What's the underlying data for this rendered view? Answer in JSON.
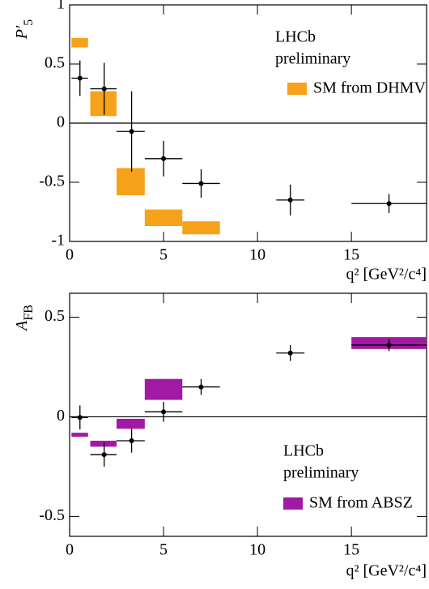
{
  "chart_data": [
    {
      "type": "errorbar",
      "y_label": [
        "P′",
        "5"
      ],
      "x_label": "q² [GeV²/c⁴]",
      "annotations": [
        "LHCb",
        "preliminary"
      ],
      "xlim": [
        0,
        19
      ],
      "xticks": [
        0,
        5,
        10,
        15
      ],
      "ylim": [
        -1,
        1
      ],
      "yticks": [
        -1,
        -0.5,
        0,
        0.5,
        1
      ],
      "data": {
        "x": [
          0.55,
          1.84,
          3.3,
          5.0,
          7.0,
          11.75,
          17.0
        ],
        "x_low": [
          0.1,
          1.1,
          2.5,
          4.0,
          6.0,
          11.0,
          15.0
        ],
        "x_high": [
          0.98,
          2.5,
          4.0,
          6.0,
          8.0,
          12.5,
          19.0
        ],
        "values": [
          0.38,
          0.29,
          -0.07,
          -0.3,
          -0.51,
          -0.65,
          -0.68
        ],
        "errors": [
          0.15,
          0.22,
          0.34,
          0.15,
          0.12,
          0.13,
          0.08
        ]
      },
      "sm": {
        "name": "SM from DHMV",
        "color": "#f7a21b",
        "bins": [
          [
            0.1,
            0.98
          ],
          [
            1.1,
            2.5
          ],
          [
            2.5,
            4.0
          ],
          [
            4.0,
            6.0
          ],
          [
            6.0,
            8.0
          ]
        ],
        "low": [
          0.64,
          0.06,
          -0.61,
          -0.87,
          -0.94
        ],
        "high": [
          0.72,
          0.27,
          -0.38,
          -0.73,
          -0.83
        ]
      }
    },
    {
      "type": "errorbar",
      "y_label": [
        "A",
        "FB"
      ],
      "x_label": "q² [GeV²/c⁴]",
      "annotations": [
        "LHCb",
        "preliminary"
      ],
      "xlim": [
        0,
        19
      ],
      "xticks": [
        0,
        5,
        10,
        15
      ],
      "ylim": [
        -0.6,
        0.62
      ],
      "yticks": [
        -0.5,
        0,
        0.5
      ],
      "data": {
        "x": [
          0.55,
          1.84,
          3.3,
          5.0,
          7.0,
          11.75,
          17.0
        ],
        "x_low": [
          0.1,
          1.1,
          2.5,
          4.0,
          6.0,
          11.0,
          15.0
        ],
        "x_high": [
          0.98,
          2.5,
          4.0,
          6.0,
          8.0,
          12.5,
          19.0
        ],
        "values": [
          -0.003,
          -0.19,
          -0.12,
          0.025,
          0.15,
          0.32,
          0.36
        ],
        "errors": [
          0.06,
          0.06,
          0.06,
          0.05,
          0.04,
          0.04,
          0.03
        ]
      },
      "sm": {
        "name": "SM from ABSZ",
        "color": "#a21aa3",
        "bins": [
          [
            0.1,
            0.98
          ],
          [
            1.1,
            2.5
          ],
          [
            2.5,
            4.0
          ],
          [
            4.0,
            6.0
          ],
          [
            15.0,
            19.0
          ]
        ],
        "low": [
          -0.1,
          -0.15,
          -0.06,
          0.085,
          0.34
        ],
        "high": [
          -0.08,
          -0.12,
          -0.01,
          0.19,
          0.4
        ]
      }
    }
  ]
}
